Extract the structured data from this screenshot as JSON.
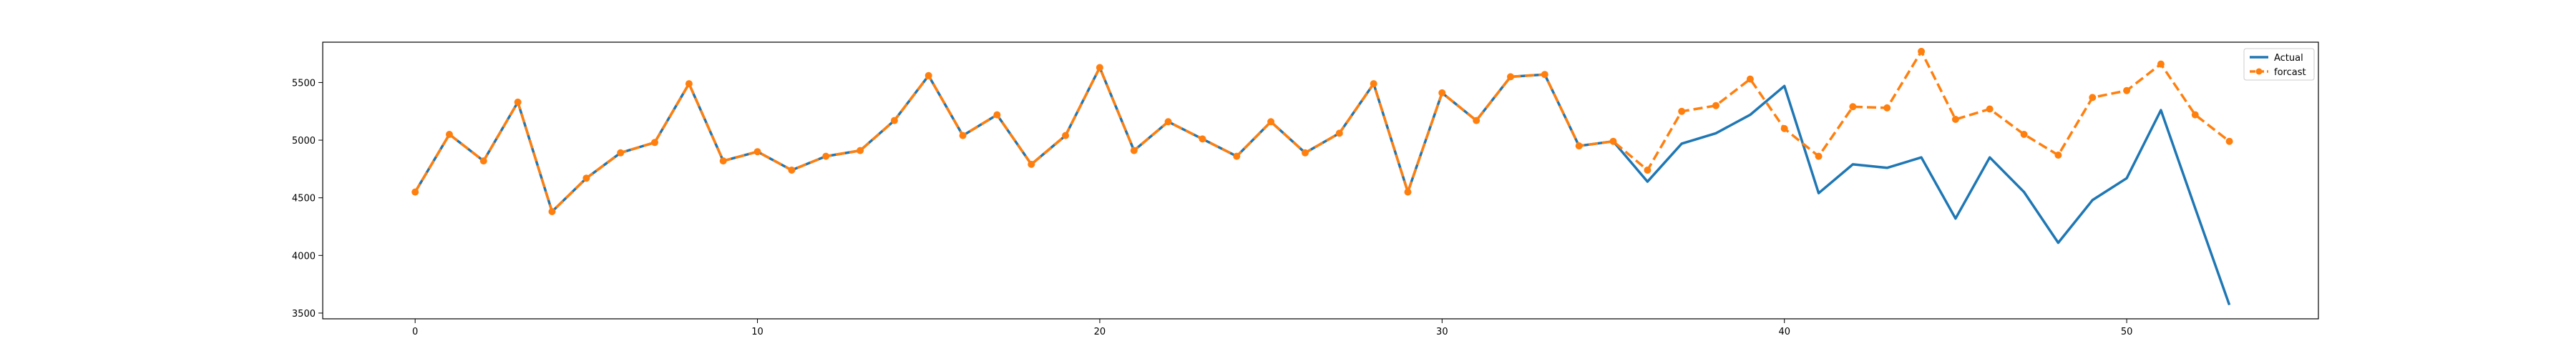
{
  "chart_data": {
    "type": "line",
    "title": "",
    "xlabel": "",
    "ylabel": "",
    "xlim": [
      -2.7,
      55.6
    ],
    "ylim": [
      3450,
      5850
    ],
    "x_ticks": [
      0,
      10,
      20,
      30,
      40,
      50
    ],
    "y_ticks": [
      3500,
      4000,
      4500,
      5000,
      5500
    ],
    "grid": false,
    "legend_position": "top-right",
    "series": [
      {
        "name": "Actual",
        "color": "#1f77b4",
        "style": "solid",
        "marker": "none",
        "x": [
          0,
          1,
          2,
          3,
          4,
          5,
          6,
          7,
          8,
          9,
          10,
          11,
          12,
          13,
          14,
          15,
          16,
          17,
          18,
          19,
          20,
          21,
          22,
          23,
          24,
          25,
          26,
          27,
          28,
          29,
          30,
          31,
          32,
          33,
          34,
          35,
          36,
          37,
          38,
          39,
          40,
          41,
          42,
          43,
          44,
          45,
          46,
          47,
          48,
          49,
          50,
          51,
          52,
          53
        ],
        "values": [
          4550,
          5050,
          4820,
          5330,
          4380,
          4670,
          4890,
          4980,
          5490,
          4820,
          4900,
          4740,
          4860,
          4910,
          5170,
          5560,
          5040,
          5220,
          4790,
          5040,
          5630,
          4910,
          5160,
          5010,
          4860,
          5160,
          4890,
          5060,
          5490,
          4550,
          5410,
          5170,
          5550,
          5570,
          4950,
          4990,
          4640,
          4970,
          5060,
          5220,
          5470,
          4540,
          4790,
          4760,
          4850,
          4320,
          4850,
          4550,
          4110,
          4480,
          4670,
          5260,
          4410,
          3570
        ]
      },
      {
        "name": "forcast",
        "color": "#ff7f0e",
        "style": "dashed",
        "marker": "circle",
        "x": [
          0,
          1,
          2,
          3,
          4,
          5,
          6,
          7,
          8,
          9,
          10,
          11,
          12,
          13,
          14,
          15,
          16,
          17,
          18,
          19,
          20,
          21,
          22,
          23,
          24,
          25,
          26,
          27,
          28,
          29,
          30,
          31,
          32,
          33,
          34,
          35,
          36,
          37,
          38,
          39,
          40,
          41,
          42,
          43,
          44,
          45,
          46,
          47,
          48,
          49,
          50,
          51,
          52,
          53
        ],
        "values": [
          4550,
          5050,
          4820,
          5330,
          4380,
          4670,
          4890,
          4980,
          5490,
          4820,
          4900,
          4740,
          4860,
          4910,
          5170,
          5560,
          5040,
          5220,
          4790,
          5040,
          5630,
          4910,
          5160,
          5010,
          4860,
          5160,
          4890,
          5060,
          5490,
          4550,
          5410,
          5170,
          5550,
          5570,
          4950,
          4990,
          4740,
          5250,
          5300,
          5530,
          5100,
          4860,
          5290,
          5280,
          5770,
          5180,
          5270,
          5050,
          4870,
          5370,
          5430,
          5660,
          5220,
          4990
        ]
      }
    ]
  }
}
